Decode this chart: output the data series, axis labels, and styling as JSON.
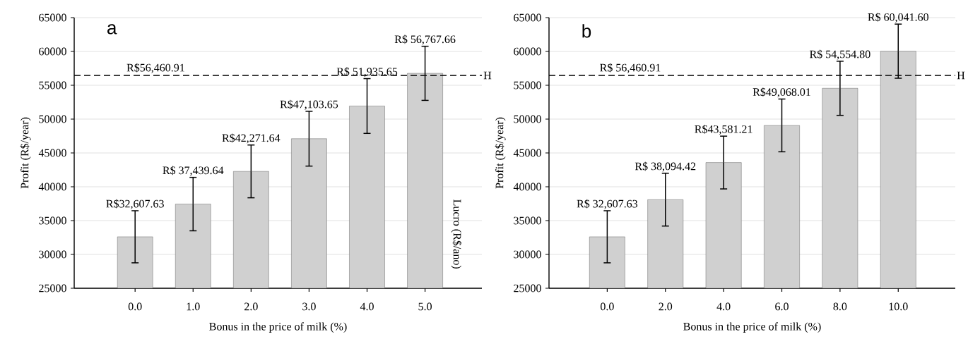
{
  "chart_data": [
    {
      "type": "bar",
      "categories": [
        "0.0",
        "1.0",
        "2.0",
        "3.0",
        "4.0",
        "5.0"
      ],
      "values": [
        32607.63,
        37439.64,
        42271.64,
        47103.65,
        51935.65,
        56767.66
      ],
      "errors": [
        3850,
        3950,
        3900,
        4050,
        4050,
        4000
      ],
      "color": "#d0d0d0",
      "value_labels": [
        "R$32,607.63",
        "R$ 37,439.64",
        "R$42,271.64",
        "R$47,103.65",
        "R$ 51,935.65",
        "R$ 56,767.66"
      ],
      "xlabel": "Bonus in the price of  milk (%)",
      "ylabel": "Profit (R$/year)",
      "ylim": [
        25000,
        65000
      ],
      "yticks": [
        25000,
        30000,
        35000,
        40000,
        45000,
        50000,
        55000,
        60000,
        65000
      ],
      "grid": "y",
      "ref_lines": [
        {
          "axis": "y",
          "value": 56460.91,
          "label": "H",
          "line_style": "dashed"
        }
      ],
      "annotations": [
        "a",
        {
          "text": "R$56,460.91",
          "y": 56460.91
        },
        "Lucro (R$/ano)"
      ]
    },
    {
      "type": "bar",
      "categories": [
        "0.0",
        "2.0",
        "4.0",
        "6.0",
        "8.0",
        "10.0"
      ],
      "values": [
        32607.63,
        38094.42,
        43581.21,
        49068.01,
        54554.8,
        60041.6
      ],
      "errors": [
        3850,
        3900,
        3900,
        3900,
        4000,
        4000
      ],
      "color": "#d0d0d0",
      "value_labels": [
        "R$ 32,607.63",
        "R$ 38,094.42",
        "R$43,581.21",
        "R$49,068.01",
        "R$ 54,554.80",
        "R$ 60,041.60"
      ],
      "xlabel": "Bonus in the price of  milk (%)",
      "ylabel": "Profit (R$/year)",
      "ylim": [
        25000,
        65000
      ],
      "yticks": [
        25000,
        30000,
        35000,
        40000,
        45000,
        50000,
        55000,
        60000,
        65000
      ],
      "grid": "y",
      "ref_lines": [
        {
          "axis": "y",
          "value": 56460.91,
          "label": "H",
          "line_style": "dashed"
        }
      ],
      "annotations": [
        "b",
        {
          "text": "R$ 56,460.91",
          "y": 56460.91
        }
      ]
    }
  ]
}
